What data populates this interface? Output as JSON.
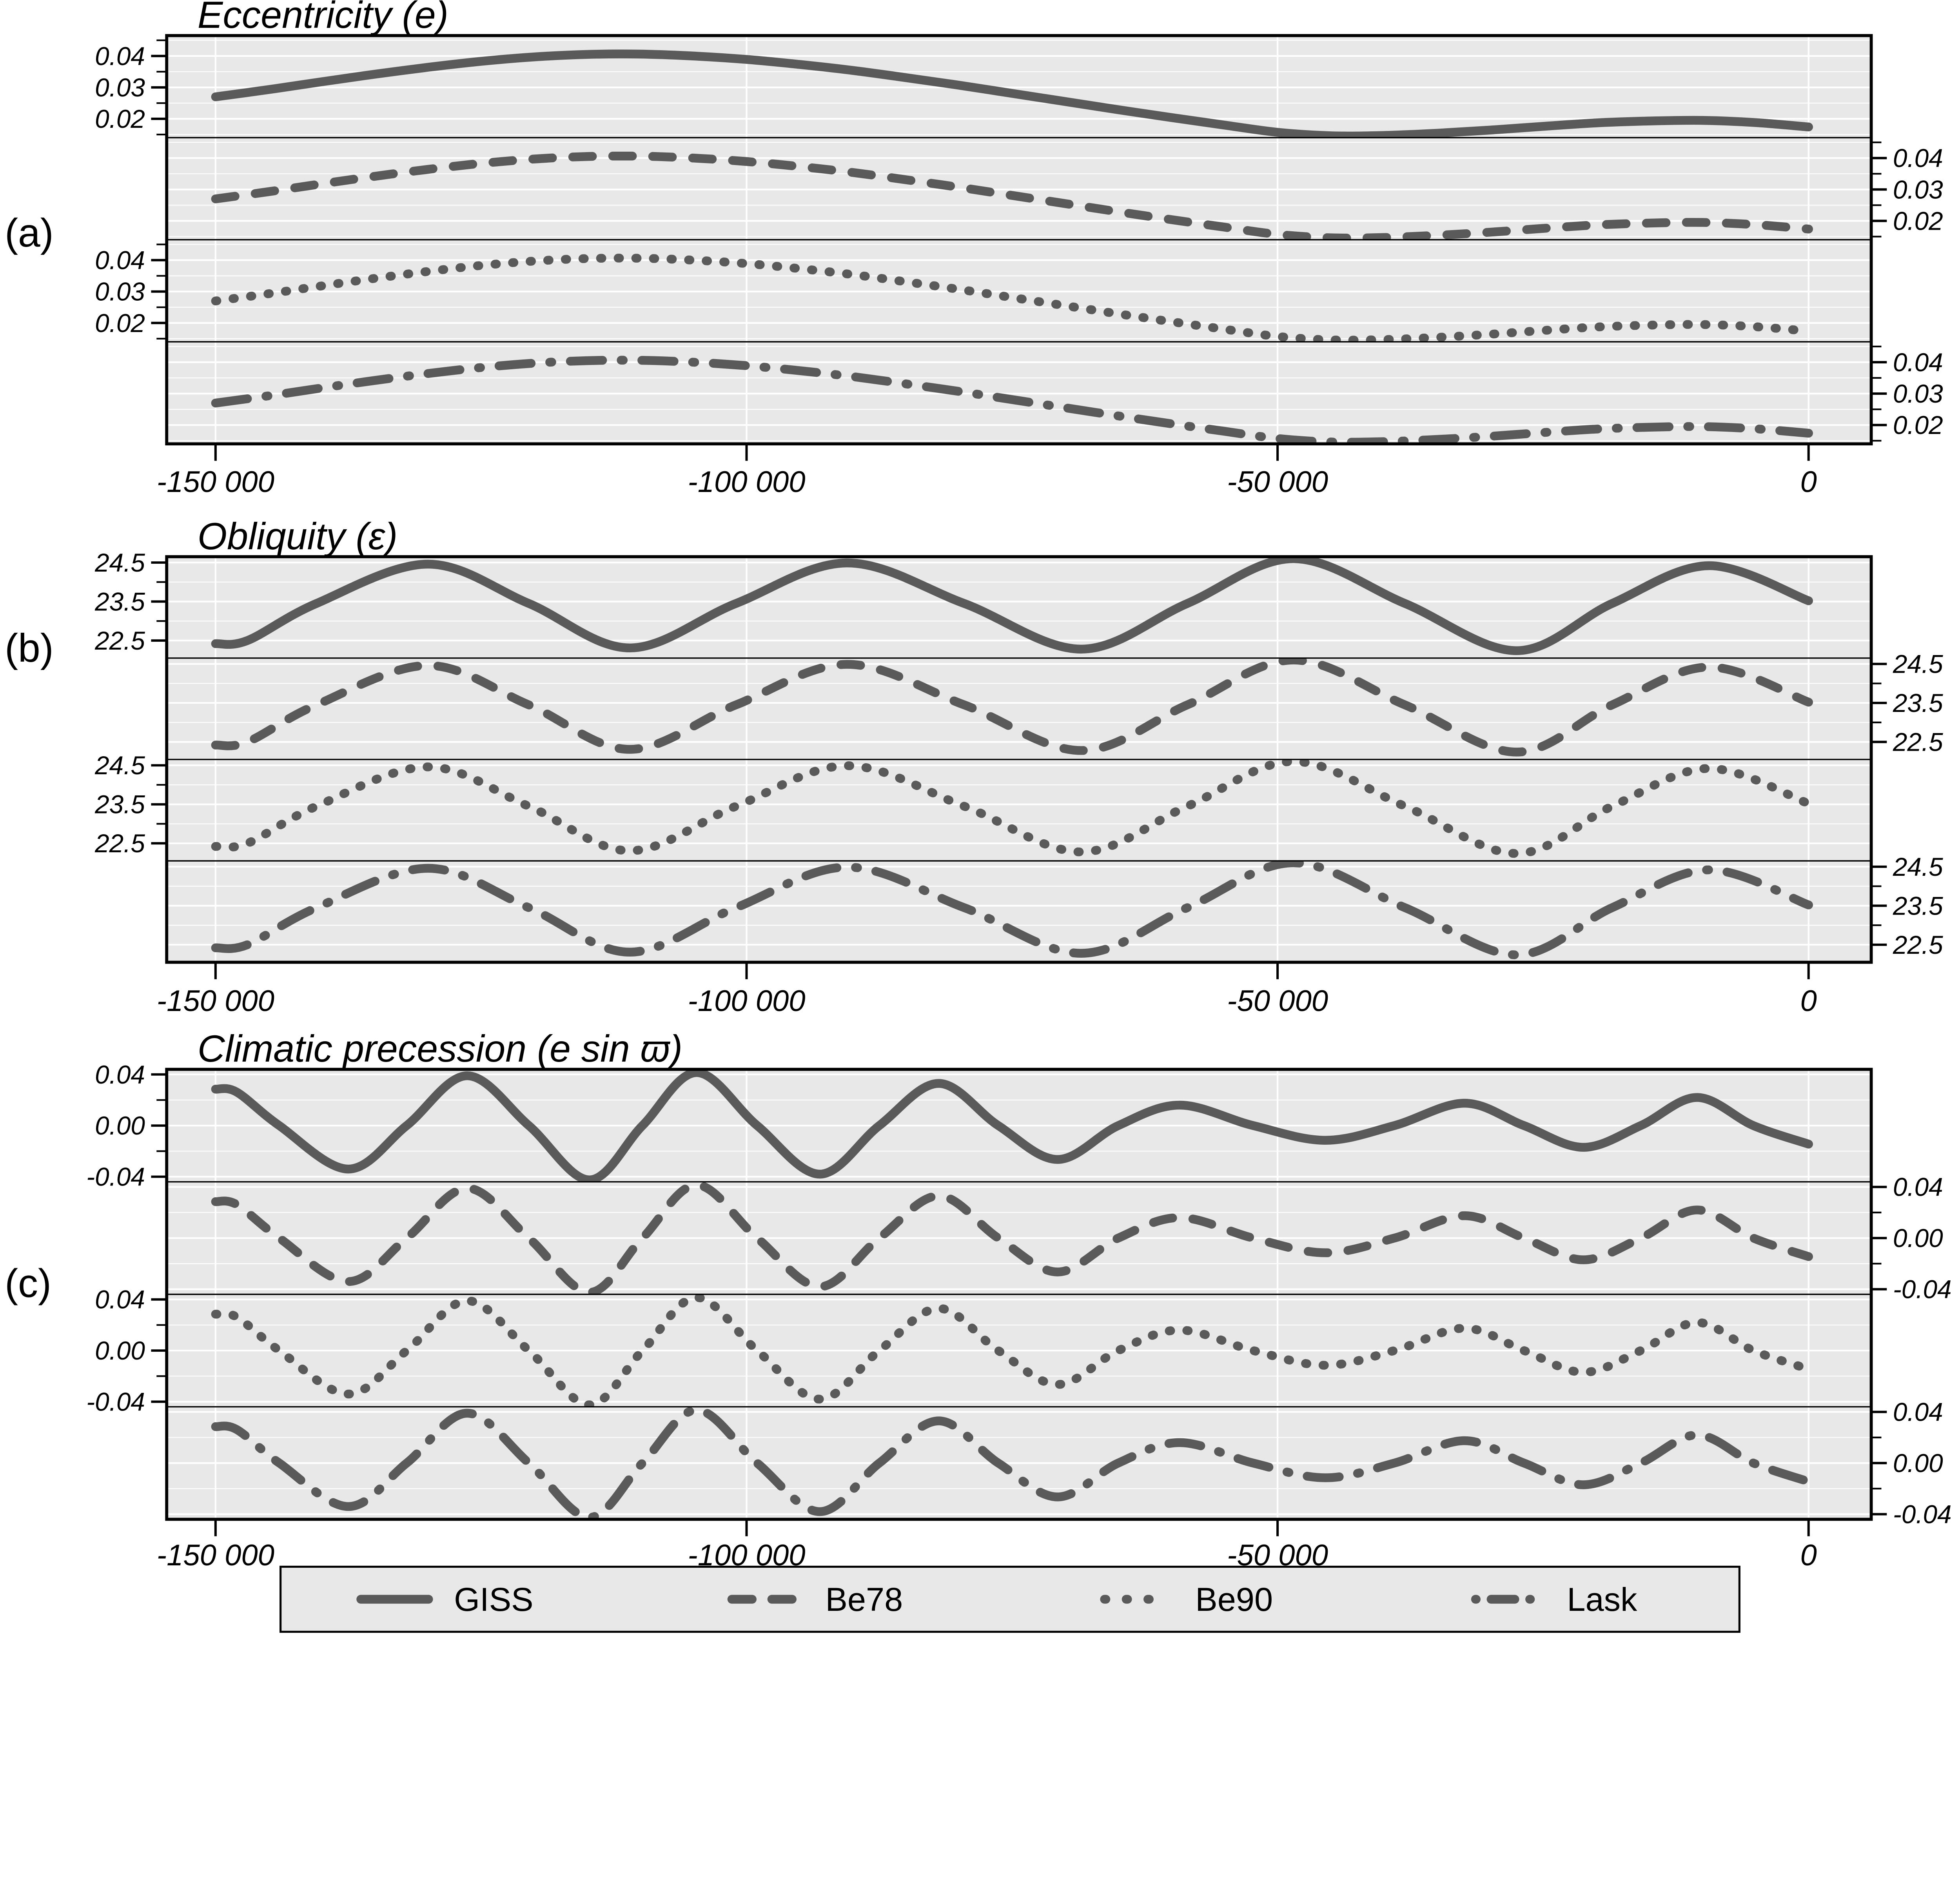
{
  "figure": {
    "background": "#ffffff",
    "panel_bg": "#e8e8e8",
    "grid_color": "#ffffff",
    "curve_color": "#5a5a5a",
    "frame_color": "#000000",
    "legend": {
      "bg": "#e8e8e8",
      "border": "#000000",
      "items": [
        {
          "label": "GISS",
          "dash": "solid"
        },
        {
          "label": "Be78",
          "dash": "dashed"
        },
        {
          "label": "Be90",
          "dash": "dotted"
        },
        {
          "label": "Lask",
          "dash": "dash-dot"
        }
      ]
    }
  },
  "chart_data": [
    {
      "panel_label": "(a)",
      "type": "line",
      "title": "Eccentricity (e)",
      "xlim": [
        -154600,
        5900
      ],
      "ylim": [
        0.014,
        0.0465
      ],
      "x_ticks": {
        "values": [
          -150000,
          -100000,
          -50000,
          0
        ],
        "labels": [
          "-150 000",
          "-100 000",
          "-50 000",
          "0"
        ]
      },
      "y_ticks": {
        "values": [
          0.04,
          0.03,
          0.02
        ],
        "labels": [
          "0.04",
          "0.03",
          "0.02"
        ]
      },
      "y_minor": [
        0.045,
        0.035,
        0.025,
        0.015
      ],
      "legend_position": "bottom",
      "grid": true,
      "series": [
        {
          "name": "GISS",
          "dash": "solid",
          "label_side": "left",
          "x": [
            -150000,
            -145000,
            -140000,
            -135000,
            -130000,
            -125000,
            -120000,
            -115000,
            -110000,
            -105000,
            -100000,
            -95000,
            -90000,
            -85000,
            -80000,
            -75000,
            -70000,
            -65000,
            -60000,
            -55000,
            -50000,
            -45000,
            -40000,
            -35000,
            -30000,
            -25000,
            -20000,
            -15000,
            -10000,
            -5000,
            0
          ],
          "y": [
            0.027,
            0.0293,
            0.0318,
            0.0342,
            0.0364,
            0.0383,
            0.0397,
            0.0405,
            0.0406,
            0.04,
            0.0389,
            0.0373,
            0.0354,
            0.0331,
            0.0307,
            0.0281,
            0.0255,
            0.0229,
            0.0204,
            0.018,
            0.0157,
            0.0146,
            0.0147,
            0.0154,
            0.0164,
            0.0176,
            0.0187,
            0.0193,
            0.0195,
            0.0188,
            0.0174
          ]
        },
        {
          "name": "Be78",
          "dash": "dashed",
          "label_side": "right",
          "x": [
            -150000,
            -145000,
            -140000,
            -135000,
            -130000,
            -125000,
            -120000,
            -115000,
            -110000,
            -105000,
            -100000,
            -95000,
            -90000,
            -85000,
            -80000,
            -75000,
            -70000,
            -65000,
            -60000,
            -55000,
            -50000,
            -45000,
            -40000,
            -35000,
            -30000,
            -25000,
            -20000,
            -15000,
            -10000,
            -5000,
            0
          ],
          "y": [
            0.027,
            0.0293,
            0.0318,
            0.0342,
            0.0364,
            0.0383,
            0.0397,
            0.0405,
            0.0406,
            0.04,
            0.0389,
            0.0373,
            0.0354,
            0.0331,
            0.0307,
            0.0281,
            0.0255,
            0.0229,
            0.0204,
            0.018,
            0.0157,
            0.0146,
            0.0147,
            0.0154,
            0.0164,
            0.0176,
            0.0187,
            0.0193,
            0.0195,
            0.0188,
            0.0174
          ]
        },
        {
          "name": "Be90",
          "dash": "dotted",
          "label_side": "left",
          "x": [
            -150000,
            -145000,
            -140000,
            -135000,
            -130000,
            -125000,
            -120000,
            -115000,
            -110000,
            -105000,
            -100000,
            -95000,
            -90000,
            -85000,
            -80000,
            -75000,
            -70000,
            -65000,
            -60000,
            -55000,
            -50000,
            -45000,
            -40000,
            -35000,
            -30000,
            -25000,
            -20000,
            -15000,
            -10000,
            -5000,
            0
          ],
          "y": [
            0.027,
            0.0293,
            0.0318,
            0.0342,
            0.0364,
            0.0383,
            0.0397,
            0.0405,
            0.0406,
            0.04,
            0.0389,
            0.0373,
            0.0354,
            0.0331,
            0.0307,
            0.0281,
            0.0255,
            0.0229,
            0.0204,
            0.018,
            0.0157,
            0.0146,
            0.0147,
            0.0154,
            0.0164,
            0.0176,
            0.0187,
            0.0193,
            0.0195,
            0.0188,
            0.0174
          ]
        },
        {
          "name": "Lask",
          "dash": "dash-dot",
          "label_side": "right",
          "x": [
            -150000,
            -145000,
            -140000,
            -135000,
            -130000,
            -125000,
            -120000,
            -115000,
            -110000,
            -105000,
            -100000,
            -95000,
            -90000,
            -85000,
            -80000,
            -75000,
            -70000,
            -65000,
            -60000,
            -55000,
            -50000,
            -45000,
            -40000,
            -35000,
            -30000,
            -25000,
            -20000,
            -15000,
            -10000,
            -5000,
            0
          ],
          "y": [
            0.027,
            0.0293,
            0.0318,
            0.0342,
            0.0364,
            0.0383,
            0.0397,
            0.0405,
            0.0406,
            0.04,
            0.0389,
            0.0373,
            0.0354,
            0.0331,
            0.0307,
            0.0281,
            0.0255,
            0.0229,
            0.0204,
            0.018,
            0.0157,
            0.0146,
            0.0147,
            0.0154,
            0.0164,
            0.0176,
            0.0187,
            0.0193,
            0.0195,
            0.0188,
            0.0174
          ]
        }
      ]
    },
    {
      "panel_label": "(b)",
      "type": "line",
      "title": "Obliquity (ε)",
      "xlim": [
        -154600,
        5900
      ],
      "ylim": [
        22.05,
        24.65
      ],
      "x_ticks": {
        "values": [
          -150000,
          -100000,
          -50000,
          0
        ],
        "labels": [
          "-150 000",
          "-100 000",
          "-50 000",
          "0"
        ]
      },
      "y_ticks": {
        "values": [
          24.5,
          23.5,
          22.5
        ],
        "labels": [
          "24.5",
          "23.5",
          "22.5"
        ]
      },
      "y_minor": [
        24.0,
        23.0
      ],
      "legend_position": "bottom",
      "grid": true,
      "series": [
        {
          "name": "GISS",
          "dash": "solid",
          "label_side": "left",
          "x": [
            -150000,
            -147000,
            -140500,
            -130000,
            -120500,
            -111000,
            -101000,
            -90500,
            -79500,
            -68500,
            -58500,
            -48500,
            -38000,
            -27500,
            -18500,
            -9400,
            0
          ],
          "y": [
            22.42,
            22.5,
            23.45,
            24.46,
            23.45,
            22.31,
            23.45,
            24.49,
            23.45,
            22.28,
            23.45,
            24.6,
            23.45,
            22.24,
            23.45,
            24.42,
            23.52
          ]
        },
        {
          "name": "Be78",
          "dash": "dashed",
          "label_side": "right",
          "x": [
            -150000,
            -147000,
            -140500,
            -130000,
            -120500,
            -111000,
            -101000,
            -90500,
            -79500,
            -68500,
            -58500,
            -48500,
            -38000,
            -27500,
            -18500,
            -9400,
            0
          ],
          "y": [
            22.42,
            22.5,
            23.45,
            24.46,
            23.45,
            22.31,
            23.45,
            24.49,
            23.45,
            22.28,
            23.45,
            24.6,
            23.45,
            22.24,
            23.45,
            24.42,
            23.52
          ]
        },
        {
          "name": "Be90",
          "dash": "dotted",
          "label_side": "left",
          "x": [
            -150000,
            -147000,
            -140500,
            -130000,
            -120500,
            -111000,
            -101000,
            -90500,
            -79500,
            -68500,
            -58500,
            -48500,
            -38000,
            -27500,
            -18500,
            -9400,
            0
          ],
          "y": [
            22.42,
            22.5,
            23.45,
            24.46,
            23.45,
            22.31,
            23.45,
            24.49,
            23.45,
            22.28,
            23.45,
            24.6,
            23.45,
            22.24,
            23.45,
            24.42,
            23.52
          ]
        },
        {
          "name": "Lask",
          "dash": "dash-dot",
          "label_side": "right",
          "x": [
            -150000,
            -147000,
            -140500,
            -130000,
            -120500,
            -111000,
            -101000,
            -90500,
            -79500,
            -68500,
            -58500,
            -48500,
            -38000,
            -27500,
            -18500,
            -9400,
            0
          ],
          "y": [
            22.42,
            22.5,
            23.45,
            24.46,
            23.45,
            22.31,
            23.45,
            24.49,
            23.45,
            22.28,
            23.45,
            24.6,
            23.45,
            22.24,
            23.45,
            24.42,
            23.52
          ]
        }
      ]
    },
    {
      "panel_label": "(c)",
      "type": "line",
      "title": "Climatic precession (e sin ϖ)",
      "xlim": [
        -154600,
        5900
      ],
      "ylim": [
        -0.044,
        0.044
      ],
      "x_ticks": {
        "values": [
          -150000,
          -100000,
          -50000,
          0
        ],
        "labels": [
          "-150 000",
          "-100 000",
          "-50 000",
          "0"
        ]
      },
      "y_ticks": {
        "values": [
          0.04,
          0.0,
          -0.04
        ],
        "labels": [
          "0.04",
          "0.00",
          "-0.04"
        ]
      },
      "y_minor": [
        0.02,
        -0.02
      ],
      "legend_position": "bottom",
      "grid": true,
      "series": [
        {
          "name": "GISS",
          "dash": "solid",
          "label_side": "left",
          "x": [
            -150000,
            -148000,
            -144000,
            -137500,
            -132000,
            -126300,
            -120500,
            -114800,
            -109800,
            -104700,
            -99000,
            -93100,
            -87500,
            -81900,
            -76300,
            -70700,
            -65000,
            -59200,
            -52300,
            -45500,
            -39000,
            -32400,
            -26800,
            -21200,
            -15800,
            -10500,
            -5200,
            0
          ],
          "y": [
            0.0285,
            0.0262,
            0,
            -0.034,
            0,
            0.039,
            0,
            -0.0425,
            0,
            0.0415,
            0,
            -0.038,
            0,
            0.033,
            0,
            -0.0265,
            0,
            0.016,
            0,
            -0.0115,
            0,
            0.0175,
            0,
            -0.017,
            0,
            0.022,
            0,
            -0.0145
          ]
        },
        {
          "name": "Be78",
          "dash": "dashed",
          "label_side": "right",
          "x": [
            -150000,
            -148000,
            -144000,
            -137500,
            -132000,
            -126300,
            -120500,
            -114800,
            -109800,
            -104700,
            -99000,
            -93100,
            -87500,
            -81900,
            -76300,
            -70700,
            -65000,
            -59200,
            -52300,
            -45500,
            -39000,
            -32400,
            -26800,
            -21200,
            -15800,
            -10500,
            -5200,
            0
          ],
          "y": [
            0.0285,
            0.0262,
            0,
            -0.034,
            0,
            0.039,
            0,
            -0.0425,
            0,
            0.0415,
            0,
            -0.038,
            0,
            0.033,
            0,
            -0.0265,
            0,
            0.016,
            0,
            -0.0115,
            0,
            0.0175,
            0,
            -0.017,
            0,
            0.022,
            0,
            -0.0145
          ]
        },
        {
          "name": "Be90",
          "dash": "dotted",
          "label_side": "left",
          "x": [
            -150000,
            -148000,
            -144000,
            -137500,
            -132000,
            -126300,
            -120500,
            -114800,
            -109800,
            -104700,
            -99000,
            -93100,
            -87500,
            -81900,
            -76300,
            -70700,
            -65000,
            -59200,
            -52300,
            -45500,
            -39000,
            -32400,
            -26800,
            -21200,
            -15800,
            -10500,
            -5200,
            0
          ],
          "y": [
            0.0285,
            0.0262,
            0,
            -0.034,
            0,
            0.039,
            0,
            -0.0425,
            0,
            0.0415,
            0,
            -0.038,
            0,
            0.033,
            0,
            -0.0265,
            0,
            0.016,
            0,
            -0.0115,
            0,
            0.0175,
            0,
            -0.017,
            0,
            0.022,
            0,
            -0.0145
          ]
        },
        {
          "name": "Lask",
          "dash": "dash-dot",
          "label_side": "right",
          "x": [
            -150000,
            -148000,
            -144000,
            -137500,
            -132000,
            -126300,
            -120500,
            -114800,
            -109800,
            -104700,
            -99000,
            -93100,
            -87500,
            -81900,
            -76300,
            -70700,
            -65000,
            -59200,
            -52300,
            -45500,
            -39000,
            -32400,
            -26800,
            -21200,
            -15800,
            -10500,
            -5200,
            0
          ],
          "y": [
            0.0285,
            0.0262,
            0,
            -0.034,
            0,
            0.039,
            0,
            -0.0425,
            0,
            0.0415,
            0,
            -0.038,
            0,
            0.033,
            0,
            -0.0265,
            0,
            0.016,
            0,
            -0.0115,
            0,
            0.0175,
            0,
            -0.017,
            0,
            0.022,
            0,
            -0.0145
          ]
        }
      ]
    }
  ]
}
